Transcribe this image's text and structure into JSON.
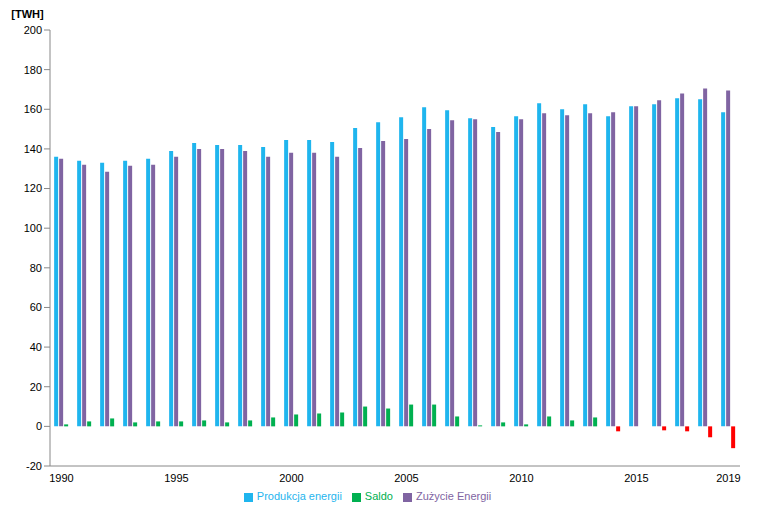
{
  "chart_data": {
    "type": "bar",
    "y_label": "[TWH]",
    "categories": [
      "1990",
      null,
      null,
      null,
      null,
      "1995",
      null,
      null,
      null,
      null,
      "2000",
      null,
      null,
      null,
      null,
      "2005",
      null,
      null,
      null,
      null,
      "2010",
      null,
      null,
      null,
      null,
      "2015",
      null,
      null,
      null,
      "2019"
    ],
    "series": [
      {
        "name": "Produkcja energii",
        "color": "#1fb5ee",
        "values": [
          136,
          134,
          133,
          134,
          135,
          139,
          143,
          142,
          142,
          141,
          144.5,
          144.5,
          143.5,
          150.5,
          153.5,
          156,
          161,
          159.5,
          155.5,
          151,
          156.5,
          163,
          160,
          162.5,
          156.5,
          161.5,
          162.5,
          165.5,
          165,
          158.5
        ]
      },
      {
        "name": "Zużycie Energii",
        "color": "#8064a2",
        "values": [
          135,
          132,
          128.5,
          131.5,
          132,
          136,
          140,
          140,
          139,
          136,
          138,
          138,
          136,
          140.5,
          144,
          145,
          150,
          154.5,
          155,
          148.5,
          155,
          158,
          157,
          158,
          158.5,
          161.5,
          164.5,
          168,
          170.5,
          169.5
        ]
      },
      {
        "name": "Saldo",
        "color": "#00b050",
        "colors": [
          "#00b050",
          "#00b050",
          "#00b050",
          "#00b050",
          "#00b050",
          "#00b050",
          "#00b050",
          "#00b050",
          "#00b050",
          "#00b050",
          "#00b050",
          "#00b050",
          "#00b050",
          "#00b050",
          "#00b050",
          "#00b050",
          "#00b050",
          "#00b050",
          "#00b050",
          "#00b050",
          "#00b050",
          "#00b050",
          "#00b050",
          "#00b050",
          "#ff0000",
          "#00b050",
          "#ff0000",
          "#ff0000",
          "#ff0000",
          "#ff0000"
        ],
        "values": [
          1,
          2.5,
          4,
          2,
          2.5,
          2.5,
          3,
          2,
          3,
          4.5,
          6,
          6.5,
          7,
          10,
          9,
          11,
          11,
          5,
          0.5,
          2,
          1,
          5,
          3,
          4.5,
          -2.5,
          0,
          -2,
          -2.5,
          -5.5,
          -11
        ]
      }
    ],
    "ylim": [
      -20,
      200
    ],
    "yticks": [
      -20,
      0,
      20,
      40,
      60,
      80,
      100,
      120,
      140,
      160,
      180,
      200
    ],
    "grid": false,
    "legend": "bottom"
  }
}
